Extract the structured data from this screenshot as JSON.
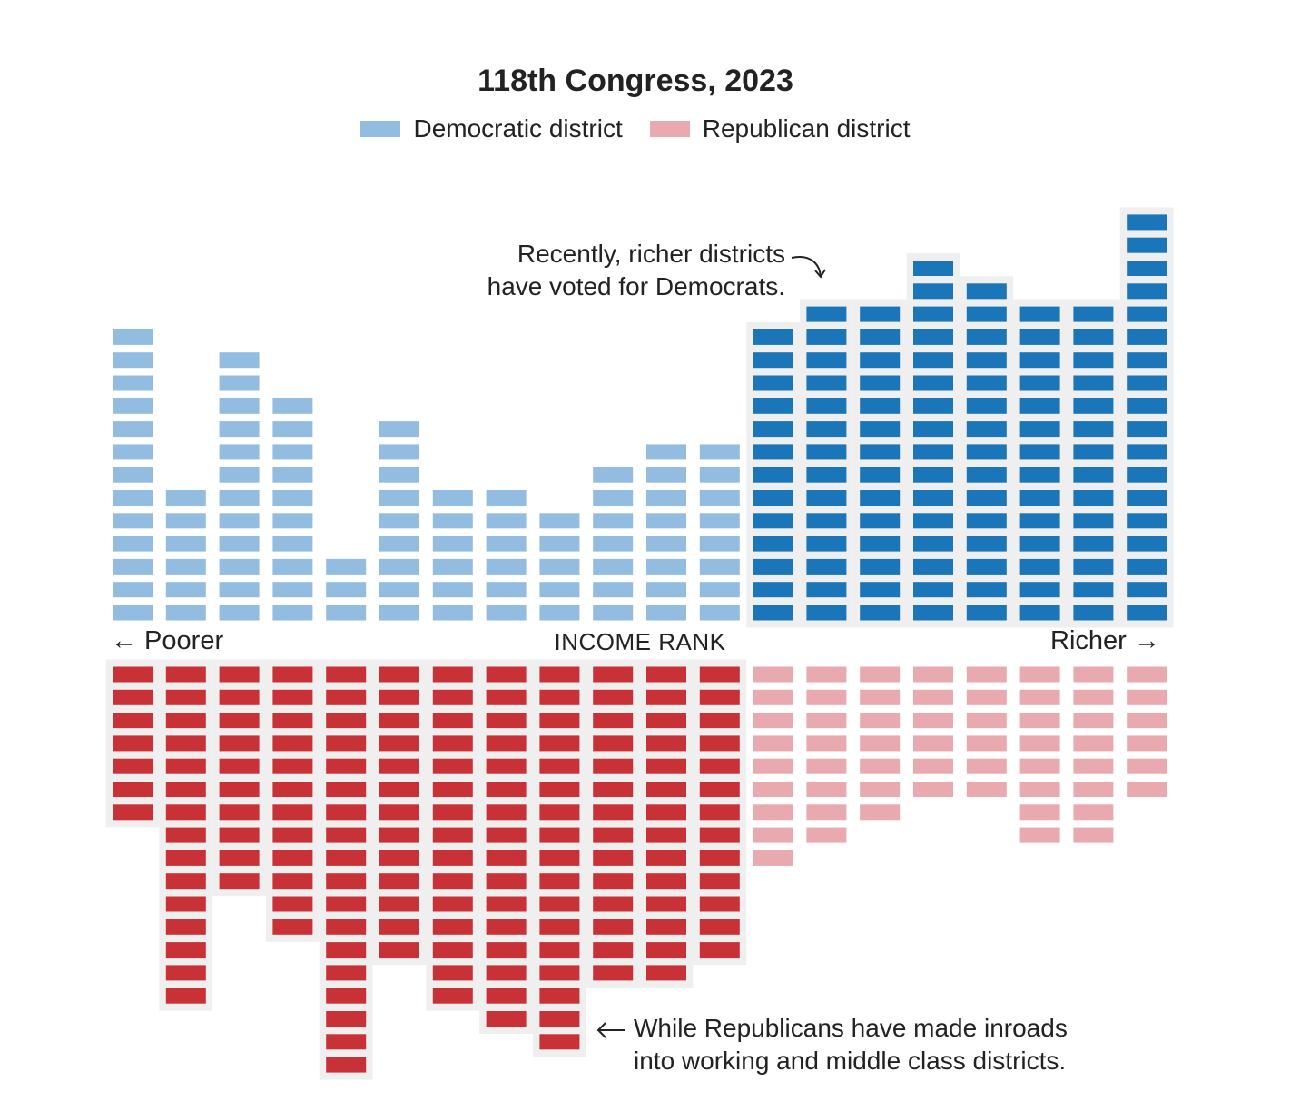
{
  "chart_data": {
    "type": "waffle-column",
    "title": "118th Congress, 2023",
    "legend": [
      {
        "label": "Democratic district",
        "color": "#93bde0"
      },
      {
        "label": "Republican district",
        "color": "#e8aaaf"
      }
    ],
    "xlabel": "INCOME RANK",
    "x_left_label": "← Poorer",
    "x_right_label": "Richer →",
    "groups": 20,
    "democratic_counts": [
      13,
      6,
      12,
      10,
      3,
      9,
      6,
      6,
      5,
      7,
      8,
      8,
      13,
      14,
      14,
      16,
      15,
      14,
      14,
      18
    ],
    "republican_counts": [
      7,
      15,
      10,
      12,
      18,
      13,
      15,
      16,
      17,
      14,
      14,
      13,
      9,
      8,
      7,
      6,
      6,
      8,
      8,
      6
    ],
    "highlight_democratic_from_group": 13,
    "highlight_republican_through_group": 12,
    "colors": {
      "dem_light": "#93bde0",
      "dem_dark": "#1a75b9",
      "rep_light": "#e8aaaf",
      "rep_dark": "#c83236",
      "highlight_bg": "#efefef"
    },
    "annotations": [
      {
        "lines": [
          "Recently, richer districts",
          "have voted for Democrats."
        ]
      },
      {
        "lines": [
          "While Republicans have made inroads",
          "into working and middle class districts."
        ]
      }
    ]
  }
}
